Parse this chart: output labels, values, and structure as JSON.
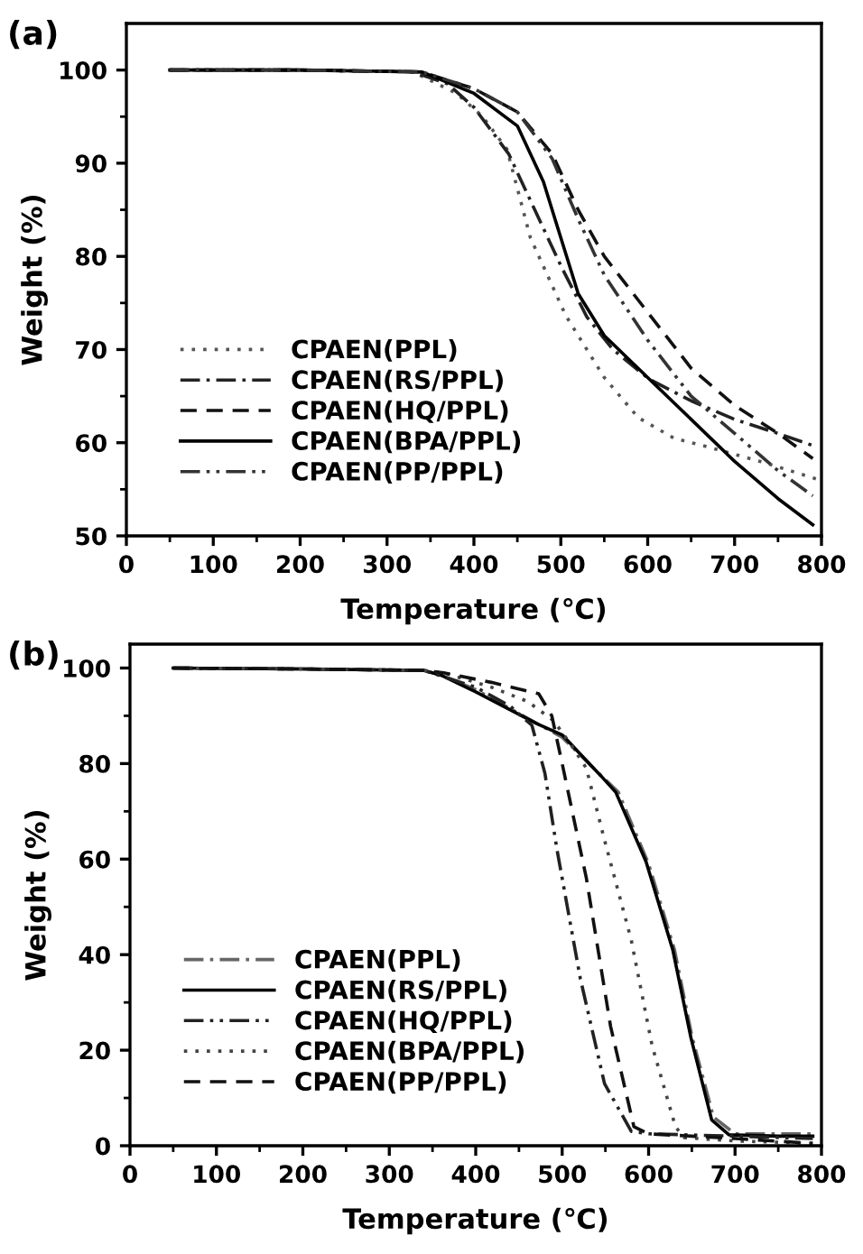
{
  "chart_data": [
    {
      "type": "line",
      "title": "(a)",
      "xlabel": "Temperature (℃)",
      "ylabel": "Weight (%)",
      "xlim": [
        0,
        800
      ],
      "ylim": [
        50,
        105
      ],
      "xticks": [
        0,
        {
          "value": 50,
          "label": null
        },
        100,
        {
          "value": 150,
          "label": null
        },
        200,
        {
          "value": 250,
          "label": null
        },
        300,
        {
          "value": 350,
          "label": null
        },
        400,
        {
          "value": 450,
          "label": null
        },
        500,
        {
          "value": 550,
          "label": null
        },
        600,
        {
          "value": 650,
          "label": null
        },
        700,
        {
          "value": 750,
          "label": null
        },
        800
      ],
      "yticks": [
        50,
        {
          "value": 55,
          "label": null
        },
        60,
        {
          "value": 65,
          "label": null
        },
        70,
        {
          "value": 75,
          "label": null
        },
        80,
        {
          "value": 85,
          "label": null
        },
        90,
        {
          "value": 95,
          "label": null
        },
        100
      ],
      "grid": false,
      "legend": "bottom left",
      "series": [
        {
          "name": "CPAEN(PPL)",
          "color": "#555555",
          "line_style": "dotted",
          "x": [
            50,
            200,
            330,
            380,
            410,
            438,
            465,
            506,
            550,
            589,
            630,
            671,
            733,
            798
          ],
          "values": [
            100,
            100,
            99.8,
            97.5,
            95,
            91.5,
            82,
            73.6,
            67,
            62.7,
            60.5,
            59.5,
            57.9,
            56
          ]
        },
        {
          "name": "CPAEN(RS/PPL)",
          "color": "#222222",
          "line_style": "dashdot",
          "x": [
            50,
            200,
            330,
            370,
            400,
            440,
            470,
            500,
            530,
            560,
            602,
            650,
            700,
            750,
            790
          ],
          "values": [
            100,
            100,
            99.8,
            98.5,
            96,
            91,
            85,
            79,
            73.5,
            70,
            66.8,
            64.5,
            62.5,
            61,
            59.7
          ]
        },
        {
          "name": "CPAEN(HQ/PPL)",
          "color": "#111111",
          "line_style": "dashed",
          "x": [
            50,
            200,
            340,
            400,
            450,
            490,
            520,
            550,
            600,
            650,
            700,
            750,
            790
          ],
          "values": [
            100,
            100,
            99.8,
            98,
            95.5,
            91,
            85,
            80,
            74,
            68,
            64,
            61,
            58.3
          ]
        },
        {
          "name": "CPAEN(BPA/PPL)",
          "color": "#000000",
          "line_style": "solid",
          "x": [
            50,
            200,
            340,
            400,
            450,
            480,
            500,
            520,
            550,
            600,
            650,
            700,
            750,
            790
          ],
          "values": [
            100,
            100,
            99.8,
            97.5,
            94,
            88,
            82,
            76,
            71.5,
            67,
            62.5,
            58,
            54,
            51.2
          ]
        },
        {
          "name": "CPAEN(PP/PPL)",
          "color": "#333333",
          "line_style": "dashdotdot",
          "x": [
            50,
            200,
            340,
            400,
            450,
            490,
            520,
            550,
            600,
            650,
            700,
            750,
            790
          ],
          "values": [
            100,
            100,
            99.8,
            98,
            95.5,
            90.5,
            84,
            78,
            71,
            65,
            61,
            57,
            54.3
          ]
        }
      ]
    },
    {
      "type": "line",
      "title": "(b)",
      "xlabel": "Temperature (℃)",
      "ylabel": "Weight (%)",
      "xlim": [
        0,
        800
      ],
      "ylim": [
        0,
        105
      ],
      "xticks": [
        0,
        {
          "value": 50,
          "label": null
        },
        100,
        {
          "value": 150,
          "label": null
        },
        200,
        {
          "value": 250,
          "label": null
        },
        300,
        {
          "value": 350,
          "label": null
        },
        400,
        {
          "value": 450,
          "label": null
        },
        500,
        {
          "value": 550,
          "label": null
        },
        600,
        {
          "value": 650,
          "label": null
        },
        700,
        {
          "value": 750,
          "label": null
        },
        800
      ],
      "yticks": [
        0,
        {
          "value": 10,
          "label": null
        },
        20,
        {
          "value": 30,
          "label": null
        },
        40,
        {
          "value": 50,
          "label": null
        },
        60,
        {
          "value": 70,
          "label": null
        },
        80,
        {
          "value": 90,
          "label": null
        },
        100
      ],
      "grid": false,
      "legend": "bottom left",
      "series": [
        {
          "name": "CPAEN(PPL)",
          "color": "#666666",
          "line_style": "dashdot",
          "x": [
            50,
            200,
            340,
            360,
            400,
            450,
            500,
            545,
            565,
            600,
            630,
            650,
            675,
            700,
            750,
            790
          ],
          "values": [
            100,
            99.8,
            99.5,
            98.5,
            95.5,
            90.5,
            85.5,
            77.5,
            74,
            59,
            41,
            23,
            6,
            2.5,
            2.5,
            2.5
          ]
        },
        {
          "name": "CPAEN(RS/PPL)",
          "color": "#000000",
          "line_style": "solid",
          "x": [
            50,
            200,
            340,
            360,
            400,
            470,
            500,
            545,
            562,
            597,
            628,
            649,
            673,
            693,
            750,
            790
          ],
          "values": [
            100,
            99.8,
            99.5,
            98.5,
            95,
            88.4,
            86,
            77.4,
            74,
            59.5,
            41,
            22.6,
            5.4,
            2.3,
            2,
            2
          ]
        },
        {
          "name": "CPAEN(HQ/PPL)",
          "color": "#222222",
          "line_style": "dashdotdot",
          "x": [
            50,
            200,
            340,
            400,
            440,
            465,
            480,
            494,
            521,
            549,
            580,
            600,
            700,
            790
          ],
          "values": [
            100,
            99.8,
            99.5,
            96,
            92,
            88,
            78,
            62,
            35,
            13,
            3,
            2.5,
            2,
            1.5
          ]
        },
        {
          "name": "CPAEN(BPA/PPL)",
          "color": "#444444",
          "line_style": "dotted",
          "x": [
            50,
            200,
            340,
            363,
            418,
            460,
            490,
            510,
            528,
            549,
            580,
            604,
            631,
            641,
            700,
            790
          ],
          "values": [
            100,
            99.8,
            99.5,
            99,
            96,
            93,
            89,
            84,
            79,
            64,
            43,
            21,
            4,
            1.7,
            1,
            0.5
          ]
        },
        {
          "name": "CPAEN(PP/PPL)",
          "color": "#111111",
          "line_style": "dashed",
          "x": [
            50,
            200,
            340,
            363,
            418,
            473,
            488,
            500,
            528,
            556,
            583,
            600,
            700,
            790
          ],
          "values": [
            100,
            99.8,
            99.5,
            99,
            97,
            94.6,
            90,
            80,
            56,
            25,
            4,
            2.5,
            1.5,
            0.5
          ]
        }
      ]
    }
  ]
}
